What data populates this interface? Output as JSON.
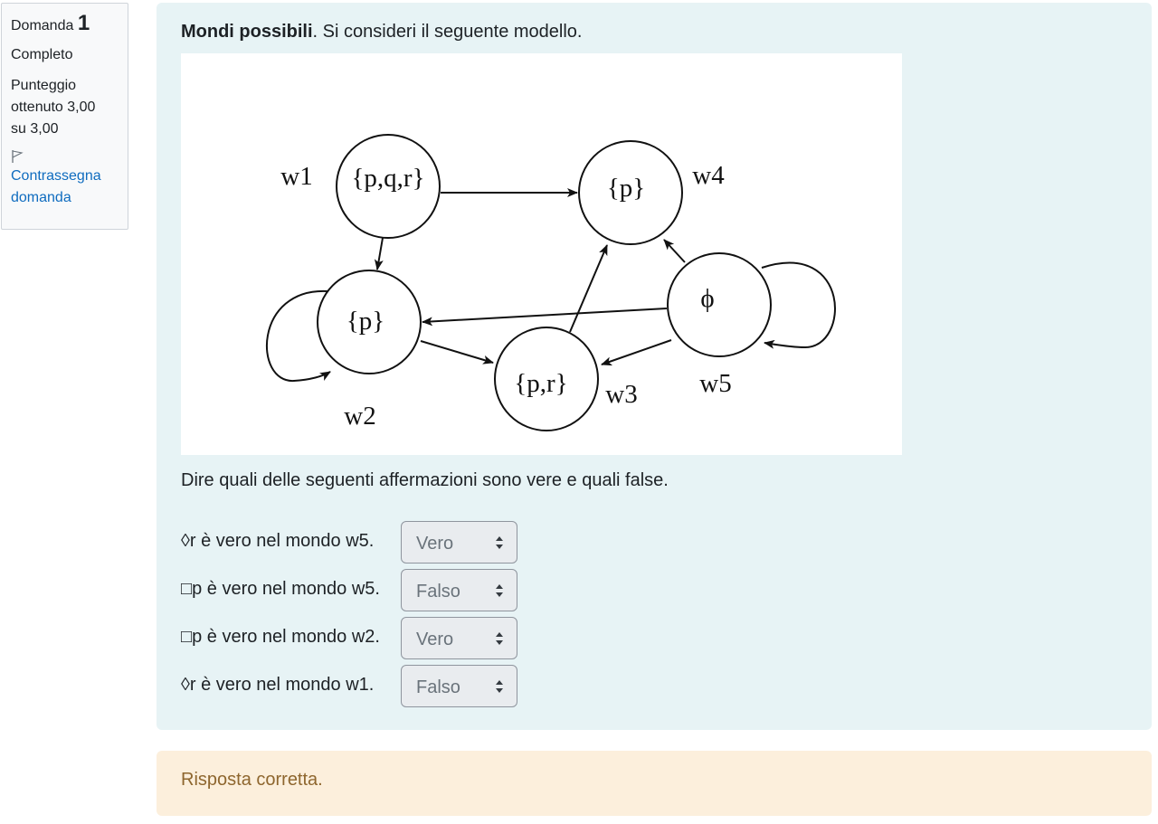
{
  "info": {
    "question_label": "Domanda",
    "question_number": "1",
    "state": "Completo",
    "grade_line1": "Punteggio",
    "grade_line2": "ottenuto 3,00",
    "grade_line3": "su 3,00",
    "flag_line1": "Contrassegna",
    "flag_line2": "domanda",
    "flag_icon": "flag-outline-icon"
  },
  "question": {
    "title_bold": "Mondi possibili",
    "title_rest": ". Si consideri il seguente modello.",
    "instruction": "Dire quali delle seguenti affermazioni sono vere e quali false."
  },
  "diagram": {
    "nodes": [
      {
        "id": "w1",
        "label": "{p,q,r}",
        "name": "w1"
      },
      {
        "id": "w2",
        "label": "{p}",
        "name": "w2"
      },
      {
        "id": "w3",
        "label": "{p,r}",
        "name": "w3"
      },
      {
        "id": "w4",
        "label": "{p}",
        "name": "w4"
      },
      {
        "id": "w5",
        "label": "ϕ",
        "name": "w5"
      }
    ],
    "edges": [
      {
        "from": "w1",
        "to": "w4"
      },
      {
        "from": "w1",
        "to": "w2"
      },
      {
        "from": "w2",
        "to": "w2"
      },
      {
        "from": "w2",
        "to": "w3"
      },
      {
        "from": "w3",
        "to": "w4"
      },
      {
        "from": "w5",
        "to": "w4"
      },
      {
        "from": "w5",
        "to": "w2"
      },
      {
        "from": "w5",
        "to": "w3"
      },
      {
        "from": "w5",
        "to": "w5"
      }
    ]
  },
  "statements": [
    {
      "text": "◊r è vero nel mondo w5.",
      "answer": "Vero"
    },
    {
      "text": "□p è vero nel mondo w5.",
      "answer": "Falso"
    },
    {
      "text": "□p è vero nel mondo w2.",
      "answer": "Vero"
    },
    {
      "text": "◊r è vero nel mondo w1.",
      "answer": "Falso"
    }
  ],
  "feedback": {
    "text": "Risposta corretta."
  },
  "colors": {
    "question_bg": "#e7f3f5",
    "feedback_bg": "#fcefdc",
    "feedback_text": "#8e662e",
    "link": "#0f6cbf"
  }
}
